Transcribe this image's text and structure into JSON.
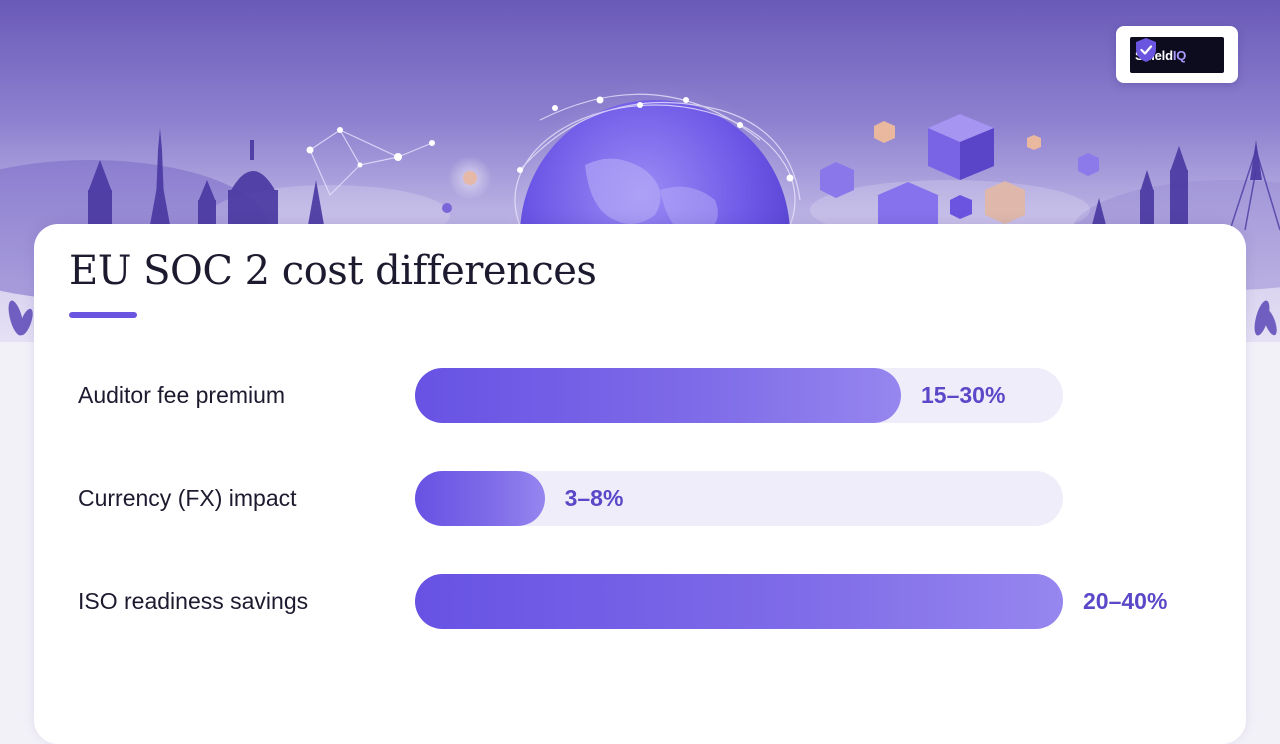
{
  "brand": {
    "name_main": "Shield",
    "name_accent": "IQ",
    "logo_icon": "shield-check-icon",
    "accent_color": "#6a55e0"
  },
  "hero": {
    "illustration": "european-skyline-globe-network-cubes"
  },
  "chart_data": {
    "type": "bar",
    "orientation": "horizontal",
    "title": "EU SOC 2 cost differences",
    "categories": [
      "Auditor fee premium",
      "Currency (FX) impact",
      "ISO readiness savings"
    ],
    "value_labels": [
      "15–30%",
      "3–8%",
      "20–40%"
    ],
    "ranges": [
      [
        15,
        30
      ],
      [
        3,
        8
      ],
      [
        20,
        40
      ]
    ],
    "values": [
      30,
      8,
      40
    ],
    "xlim": [
      0,
      40
    ],
    "grid": false,
    "legend": "none",
    "bar_color": "#6752e4",
    "track_color": "#f0edfb"
  }
}
